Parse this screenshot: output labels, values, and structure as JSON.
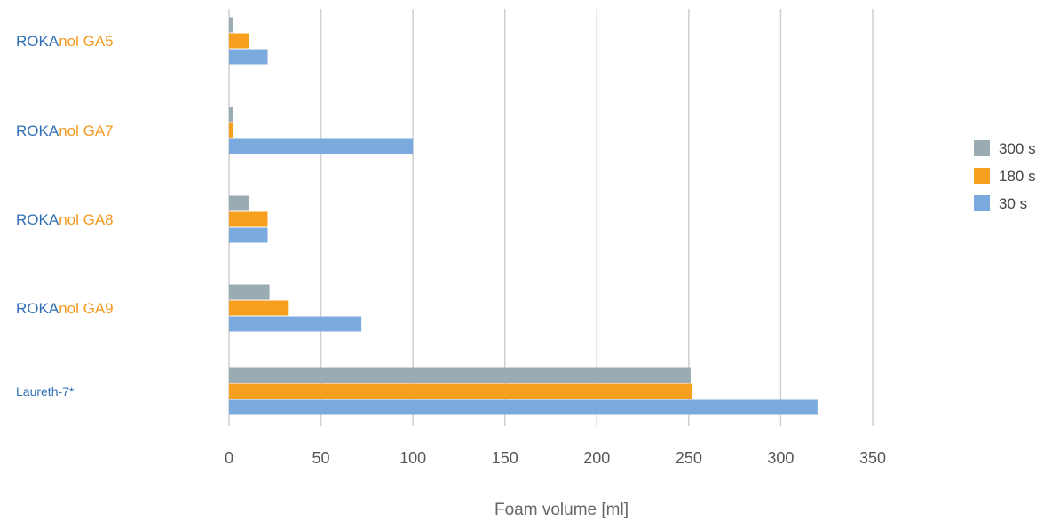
{
  "chart_data": {
    "type": "bar",
    "orientation": "horizontal",
    "categories": [
      {
        "label_prefix": "ROKA",
        "label_suffix": "nol GA5"
      },
      {
        "label_prefix": "ROKA",
        "label_suffix": "nol GA7"
      },
      {
        "label_prefix": "ROKA",
        "label_suffix": "nol GA8"
      },
      {
        "label_prefix": "ROKA",
        "label_suffix": "nol GA9"
      },
      {
        "label_prefix": "Laureth-7*",
        "label_suffix": ""
      }
    ],
    "series": [
      {
        "name": "300 s",
        "color": "#9aabb3",
        "values": [
          2,
          2,
          11,
          22,
          251
        ]
      },
      {
        "name": "180 s",
        "color": "#f7a01f",
        "values": [
          11,
          2,
          21,
          32,
          252
        ]
      },
      {
        "name": "30 s",
        "color": "#7aaade",
        "values": [
          21,
          100,
          21,
          72,
          320
        ]
      }
    ],
    "xlabel": "Foam volume [ml]",
    "ylabel": "",
    "xlim": [
      0,
      350
    ],
    "xticks": [
      0,
      50,
      100,
      150,
      200,
      250,
      300,
      350
    ],
    "grid": true,
    "legend_position": "right",
    "prefix_color": "#2f6fb6",
    "suffix_color": "#f39a1e"
  }
}
